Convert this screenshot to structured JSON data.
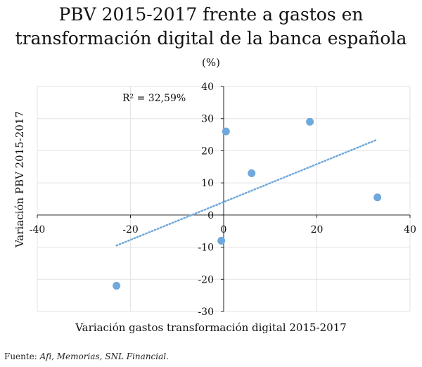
{
  "chart_data": {
    "type": "scatter",
    "title_lines": [
      "PBV 2015-2017 frente a gastos en",
      "transformación digital de la banca española"
    ],
    "unit": "(%)",
    "xlabel": "Variación gastos transformación digital 2015-2017",
    "ylabel": "Variación PBV 2015-2017",
    "xlim": [
      -40,
      40
    ],
    "ylim": [
      -30,
      40
    ],
    "xticks": [
      -40,
      -20,
      0,
      20,
      40
    ],
    "yticks": [
      -30,
      -20,
      -10,
      0,
      10,
      20,
      30,
      40
    ],
    "xtick_labels": [
      "-40",
      "-20",
      "0",
      "20",
      "40"
    ],
    "ytick_labels": [
      "-30",
      "-20",
      "-10",
      "0",
      "10",
      "20",
      "30",
      "40"
    ],
    "grid": true,
    "series": [
      {
        "x": [
          -23,
          -0.5,
          0.5,
          6,
          18.5,
          33
        ],
        "y": [
          -22,
          -8,
          26,
          13,
          29,
          5.5
        ],
        "color": "#6fa8dc"
      }
    ],
    "trendline": {
      "x": [
        -23,
        33
      ],
      "y": [
        -9.5,
        23.5
      ],
      "style": "dotted",
      "color": "#6fa8dc"
    },
    "annotation": "R² = 32,59%"
  },
  "source": {
    "prefix": "Fuente: ",
    "names": "Afi, Memorias, SNL Financial",
    "suffix": "."
  }
}
